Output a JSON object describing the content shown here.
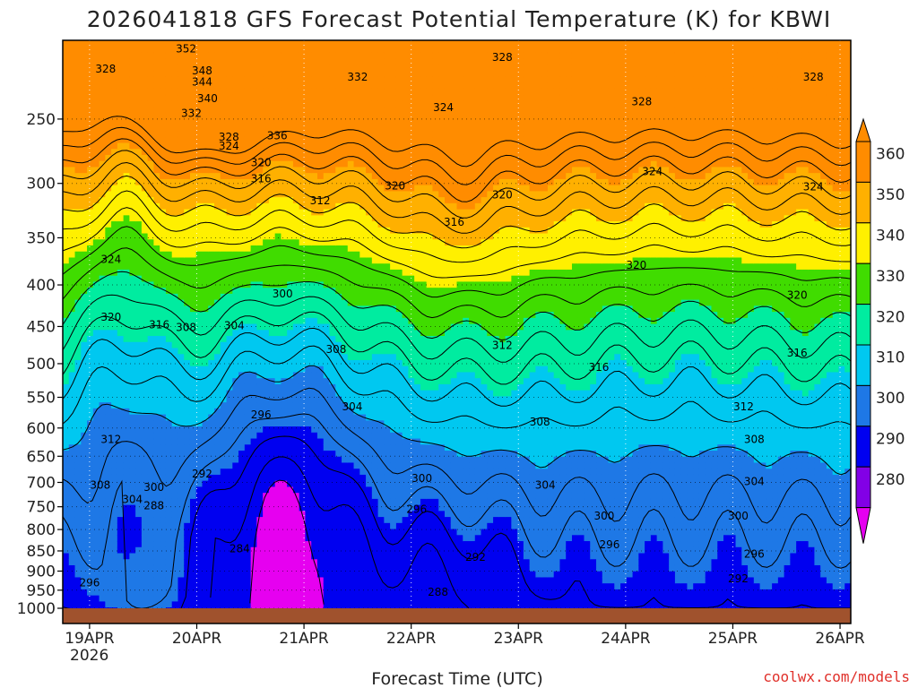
{
  "chart_data": {
    "type": "heatmap",
    "title": "2026041818 GFS Forecast Potential Temperature (K) for KBWI",
    "xlabel": "Forecast Time (UTC)",
    "ylabel": "",
    "credit": "coolwx.com/models",
    "x_ticks": [
      "19APR",
      "20APR",
      "21APR",
      "22APR",
      "23APR",
      "24APR",
      "25APR",
      "26APR"
    ],
    "x_year_label": "2026",
    "x_range_days": [
      18.75,
      26.1
    ],
    "y_ticks_hpa": [
      250,
      300,
      350,
      400,
      450,
      500,
      550,
      600,
      650,
      700,
      750,
      800,
      850,
      900,
      950,
      1000
    ],
    "y_range_hpa": [
      200,
      1000
    ],
    "y_scale": "log",
    "colorbar": {
      "labels": [
        360,
        350,
        340,
        330,
        320,
        310,
        300,
        290,
        280
      ],
      "colors": [
        "#ff8c00",
        "#ffb000",
        "#fff000",
        "#40dc00",
        "#00eca0",
        "#00c8f0",
        "#1e78e6",
        "#0000f0",
        "#8200e6",
        "#e600f0"
      ]
    },
    "contour_interval_K": 4,
    "contour_labels": [
      {
        "t": 19.15,
        "p": 217,
        "v": 328
      },
      {
        "t": 19.9,
        "p": 205,
        "v": 352
      },
      {
        "t": 20.05,
        "p": 218,
        "v": 348
      },
      {
        "t": 20.05,
        "p": 225,
        "v": 344
      },
      {
        "t": 20.1,
        "p": 236,
        "v": 340
      },
      {
        "t": 19.95,
        "p": 246,
        "v": 332
      },
      {
        "t": 20.3,
        "p": 263,
        "v": 328
      },
      {
        "t": 20.3,
        "p": 270,
        "v": 324
      },
      {
        "t": 20.75,
        "p": 262,
        "v": 336
      },
      {
        "t": 20.6,
        "p": 283,
        "v": 320
      },
      {
        "t": 20.6,
        "p": 296,
        "v": 316
      },
      {
        "t": 21.5,
        "p": 222,
        "v": 332
      },
      {
        "t": 22.3,
        "p": 242,
        "v": 324
      },
      {
        "t": 22.85,
        "p": 210,
        "v": 328
      },
      {
        "t": 21.85,
        "p": 302,
        "v": 320
      },
      {
        "t": 21.15,
        "p": 315,
        "v": 312
      },
      {
        "t": 22.4,
        "p": 335,
        "v": 316
      },
      {
        "t": 22.85,
        "p": 310,
        "v": 320
      },
      {
        "t": 24.15,
        "p": 238,
        "v": 328
      },
      {
        "t": 24.25,
        "p": 290,
        "v": 324
      },
      {
        "t": 25.75,
        "p": 222,
        "v": 328
      },
      {
        "t": 25.75,
        "p": 303,
        "v": 324
      },
      {
        "t": 24.1,
        "p": 378,
        "v": 320
      },
      {
        "t": 25.6,
        "p": 412,
        "v": 320
      },
      {
        "t": 19.2,
        "p": 372,
        "v": 324
      },
      {
        "t": 19.2,
        "p": 438,
        "v": 320
      },
      {
        "t": 19.65,
        "p": 448,
        "v": 316
      },
      {
        "t": 19.9,
        "p": 451,
        "v": 308
      },
      {
        "t": 20.35,
        "p": 449,
        "v": 304
      },
      {
        "t": 20.8,
        "p": 410,
        "v": 300
      },
      {
        "t": 21.3,
        "p": 480,
        "v": 308
      },
      {
        "t": 22.85,
        "p": 475,
        "v": 312
      },
      {
        "t": 23.75,
        "p": 505,
        "v": 316
      },
      {
        "t": 25.6,
        "p": 485,
        "v": 316
      },
      {
        "t": 21.45,
        "p": 565,
        "v": 304
      },
      {
        "t": 23.2,
        "p": 590,
        "v": 308
      },
      {
        "t": 25.1,
        "p": 565,
        "v": 312
      },
      {
        "t": 25.2,
        "p": 620,
        "v": 308
      },
      {
        "t": 25.2,
        "p": 698,
        "v": 304
      },
      {
        "t": 23.25,
        "p": 705,
        "v": 304
      },
      {
        "t": 25.05,
        "p": 770,
        "v": 300
      },
      {
        "t": 19.2,
        "p": 620,
        "v": 312
      },
      {
        "t": 19.1,
        "p": 705,
        "v": 308
      },
      {
        "t": 19.6,
        "p": 710,
        "v": 300
      },
      {
        "t": 19.4,
        "p": 735,
        "v": 304
      },
      {
        "t": 19.6,
        "p": 748,
        "v": 288
      },
      {
        "t": 20.05,
        "p": 683,
        "v": 292
      },
      {
        "t": 20.6,
        "p": 578,
        "v": 296
      },
      {
        "t": 22.1,
        "p": 692,
        "v": 300
      },
      {
        "t": 22.05,
        "p": 755,
        "v": 296
      },
      {
        "t": 23.8,
        "p": 770,
        "v": 300
      },
      {
        "t": 23.85,
        "p": 835,
        "v": 296
      },
      {
        "t": 22.6,
        "p": 865,
        "v": 292
      },
      {
        "t": 25.2,
        "p": 858,
        "v": 296
      },
      {
        "t": 25.05,
        "p": 920,
        "v": 292
      },
      {
        "t": 20.4,
        "p": 845,
        "v": 284
      },
      {
        "t": 22.25,
        "p": 955,
        "v": 288
      },
      {
        "t": 19.0,
        "p": 930,
        "v": 296
      }
    ]
  }
}
